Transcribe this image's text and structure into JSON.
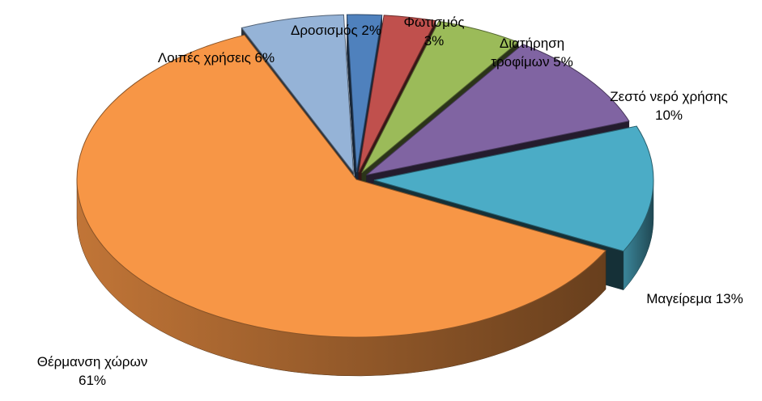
{
  "chart_data": {
    "type": "pie",
    "title": "",
    "three_d": true,
    "exploded": true,
    "slices": [
      {
        "name": "Δροσισμός",
        "value": 2,
        "label_line1": "Δροσισμός 2%",
        "label_line2": "",
        "color": "#4F81BD"
      },
      {
        "name": "Φωτισμός",
        "value": 3,
        "label_line1": "Φωτισμός",
        "label_line2": "3%",
        "color": "#C0504D"
      },
      {
        "name": "Διατήρηση τροφίμων",
        "value": 5,
        "label_line1": "Διατήρηση",
        "label_line2": "τροφίμων 5%",
        "color": "#9BBB59"
      },
      {
        "name": "Ζεστό νερό χρήσης",
        "value": 10,
        "label_line1": "Ζεστό νερό χρήσης",
        "label_line2": "10%",
        "color": "#8064A2"
      },
      {
        "name": "Μαγείρεμα",
        "value": 13,
        "label_line1": "Μαγείρεμα 13%",
        "label_line2": "",
        "color": "#4BACC6"
      },
      {
        "name": "Θέρμανση χώρων",
        "value": 61,
        "label_line1": "Θέρμανση χώρων",
        "label_line2": "61%",
        "color": "#F79646"
      },
      {
        "name": "Λοιπές χρήσεις",
        "value": 6,
        "label_line1": "Λοιπές χρήσεις 6%",
        "label_line2": "",
        "color": "#95B3D7"
      }
    ]
  }
}
